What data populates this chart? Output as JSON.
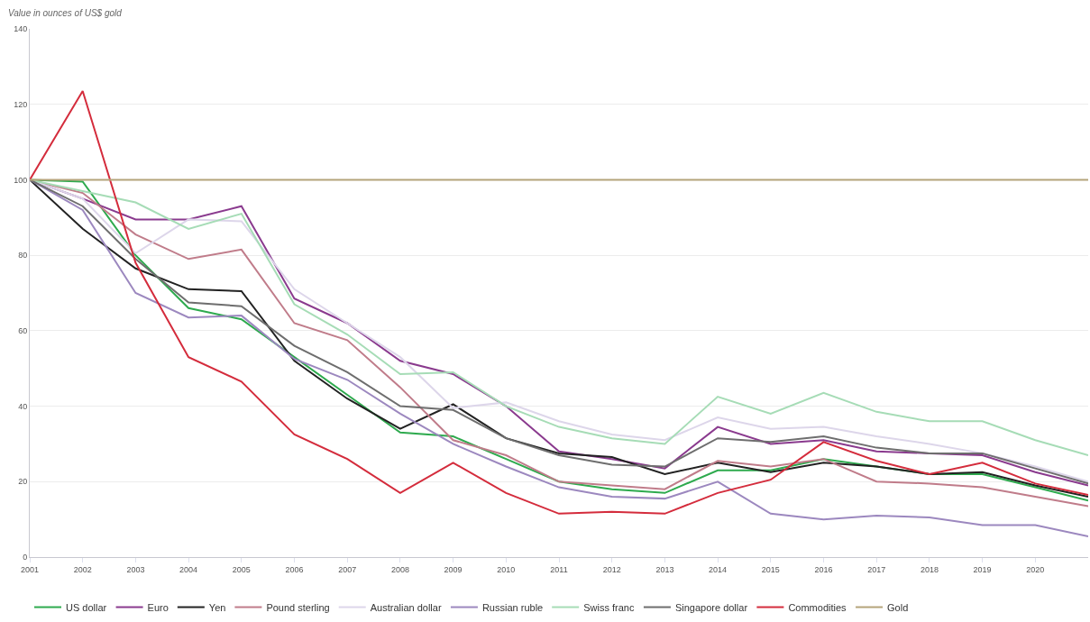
{
  "chart_data": {
    "type": "line",
    "ylabel": "Value in ounces of US$ gold",
    "x": [
      2001,
      2002,
      2003,
      2004,
      2005,
      2006,
      2007,
      2008,
      2009,
      2010,
      2011,
      2012,
      2013,
      2014,
      2015,
      2016,
      2017,
      2018,
      2019,
      2020,
      2021
    ],
    "xlim": [
      2001,
      2021
    ],
    "xticks": [
      2001,
      2002,
      2003,
      2004,
      2005,
      2006,
      2007,
      2008,
      2009,
      2010,
      2011,
      2012,
      2013,
      2014,
      2015,
      2016,
      2017,
      2018,
      2019,
      2020
    ],
    "ylim": [
      0,
      140
    ],
    "yticks": [
      0,
      20,
      40,
      60,
      80,
      100,
      120,
      140
    ],
    "grid": "y",
    "legend": "bottom",
    "marker": "none",
    "line_style": "solid",
    "series": [
      {
        "name": "US dollar",
        "color": "#2eaa4e",
        "values": [
          100,
          99.5,
          80,
          66,
          63,
          53,
          43,
          33,
          32,
          26,
          20,
          18,
          17,
          23,
          23,
          26,
          24,
          22,
          22,
          18.5,
          15
        ]
      },
      {
        "name": "Euro",
        "color": "#8a3a8e",
        "values": [
          100,
          95,
          89.5,
          89.5,
          93,
          68.5,
          62,
          52,
          48.5,
          40,
          28,
          26,
          23.5,
          34.5,
          30,
          31,
          28,
          27.5,
          27,
          22.5,
          19
        ]
      },
      {
        "name": "Yen",
        "color": "#222222",
        "values": [
          100,
          87,
          76.5,
          71,
          70.5,
          52,
          42,
          34,
          40.5,
          31.5,
          27.5,
          26.5,
          22,
          25,
          22.5,
          25,
          24,
          22,
          22.5,
          19,
          16
        ]
      },
      {
        "name": "Pound sterling",
        "color": "#c07c8a",
        "values": [
          100,
          96.5,
          85.5,
          79,
          81.5,
          62,
          57.5,
          45,
          31,
          27,
          20,
          19,
          18,
          25.5,
          24,
          26,
          20,
          19.5,
          18.5,
          16,
          13.5
        ]
      },
      {
        "name": "Australian dollar",
        "color": "#ddd6ea",
        "values": [
          100,
          95,
          80.5,
          89.5,
          89,
          71,
          62,
          53,
          39.5,
          41,
          36,
          32.5,
          31,
          37,
          34,
          34.5,
          32,
          30,
          27.5,
          24,
          20
        ]
      },
      {
        "name": "Russian ruble",
        "color": "#9c88bf",
        "values": [
          100,
          92,
          70,
          63.5,
          64,
          52.5,
          47,
          38,
          30,
          24,
          18.5,
          16,
          15.5,
          20,
          11.5,
          10,
          11,
          10.5,
          8.5,
          8.5,
          5.5
        ]
      },
      {
        "name": "Swiss franc",
        "color": "#a6dcb6",
        "values": [
          100,
          97,
          94,
          87,
          91,
          67,
          59,
          48.5,
          49,
          40,
          34.5,
          31.5,
          30,
          42.5,
          38,
          43.5,
          38.5,
          36,
          36,
          31,
          27
        ]
      },
      {
        "name": "Singapore dollar",
        "color": "#6e6e6e",
        "values": [
          100,
          93,
          79,
          67.5,
          66.5,
          56,
          49,
          40,
          39,
          31.5,
          27,
          24.5,
          24,
          31.5,
          30.5,
          32,
          29,
          27.5,
          27.5,
          23.5,
          19.5
        ]
      },
      {
        "name": "Commodities",
        "color": "#d42c3c",
        "values": [
          100,
          123.5,
          78,
          53,
          46.5,
          32.5,
          26,
          17,
          25,
          17,
          11.5,
          12,
          11.5,
          17,
          20.5,
          30.5,
          25.5,
          22,
          25,
          19.5,
          16.5
        ]
      },
      {
        "name": "Gold",
        "color": "#b4a47a",
        "values": [
          100,
          100,
          100,
          100,
          100,
          100,
          100,
          100,
          100,
          100,
          100,
          100,
          100,
          100,
          100,
          100,
          100,
          100,
          100,
          100,
          100
        ]
      }
    ]
  }
}
